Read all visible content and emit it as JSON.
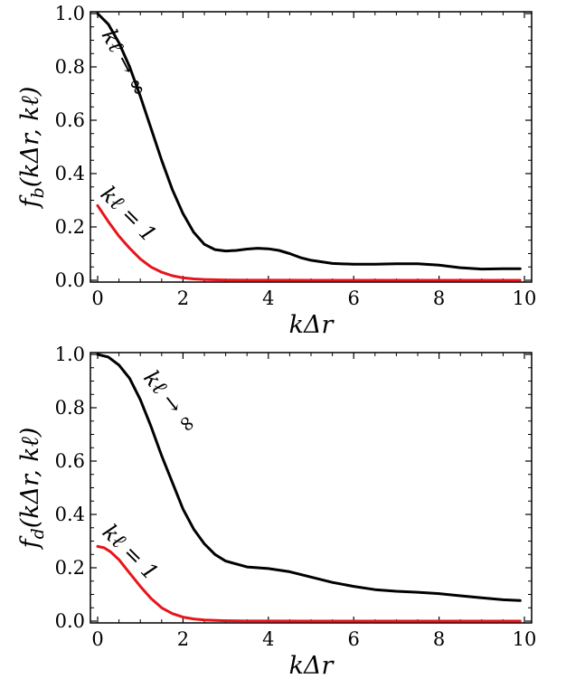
{
  "colors": {
    "black_series": "#000000",
    "red_series": "#e8141b",
    "frame": "#000000"
  },
  "chart_data": [
    {
      "type": "line",
      "xlabel": "kΔr",
      "ylabel": "f_b(kΔr, kℓ)",
      "xlim": [
        0,
        10
      ],
      "ylim": [
        0,
        1
      ],
      "x_ticks": [
        "0",
        "2",
        "4",
        "6",
        "8",
        "10"
      ],
      "y_ticks": [
        "0.0",
        "0.2",
        "0.4",
        "0.6",
        "0.8",
        "1.0"
      ],
      "grid": false,
      "legend": "none",
      "annotations": [
        "kℓ → ∞",
        "kℓ = 1"
      ],
      "series": [
        {
          "color": "#000000",
          "x": [
            0,
            0.25,
            0.5,
            0.75,
            1.0,
            1.25,
            1.5,
            1.75,
            2.0,
            2.25,
            2.5,
            2.75,
            3.0,
            3.25,
            3.5,
            3.75,
            4.0,
            4.25,
            4.5,
            4.75,
            5.0,
            5.5,
            6.0,
            6.5,
            7.0,
            7.5,
            8.0,
            8.5,
            9.0,
            9.5,
            9.9
          ],
          "y": [
            1.0,
            0.96,
            0.89,
            0.8,
            0.69,
            0.57,
            0.45,
            0.34,
            0.25,
            0.18,
            0.135,
            0.115,
            0.11,
            0.112,
            0.117,
            0.12,
            0.118,
            0.112,
            0.1,
            0.085,
            0.075,
            0.063,
            0.06,
            0.06,
            0.062,
            0.062,
            0.057,
            0.047,
            0.042,
            0.043,
            0.043
          ]
        },
        {
          "color": "#e8141b",
          "x": [
            0,
            0.25,
            0.5,
            0.75,
            1.0,
            1.25,
            1.5,
            1.75,
            2.0,
            2.25,
            2.5,
            3.0,
            3.5,
            4.0,
            5.0,
            6.0,
            7.0,
            8.0,
            9.0,
            9.9
          ],
          "y": [
            0.28,
            0.22,
            0.165,
            0.12,
            0.08,
            0.05,
            0.03,
            0.017,
            0.009,
            0.005,
            0.003,
            0.001,
            0.0005,
            0.0002,
            0.0001,
            0.0001,
            0.0001,
            0.0001,
            0.0001,
            0.0001
          ]
        }
      ]
    },
    {
      "type": "line",
      "xlabel": "kΔr",
      "ylabel": "f_d(kΔr, kℓ)",
      "xlim": [
        0,
        10
      ],
      "ylim": [
        0,
        1
      ],
      "x_ticks": [
        "0",
        "2",
        "4",
        "6",
        "8",
        "10"
      ],
      "y_ticks": [
        "0.0",
        "0.2",
        "0.4",
        "0.6",
        "0.8",
        "1.0"
      ],
      "grid": false,
      "legend": "none",
      "annotations": [
        "kℓ → ∞",
        "kℓ = 1"
      ],
      "series": [
        {
          "color": "#000000",
          "x": [
            0,
            0.25,
            0.5,
            0.75,
            1.0,
            1.25,
            1.5,
            1.75,
            2.0,
            2.25,
            2.5,
            2.75,
            3.0,
            3.5,
            4.0,
            4.5,
            5.0,
            5.5,
            6.0,
            6.5,
            7.0,
            7.5,
            8.0,
            8.5,
            9.0,
            9.5,
            9.9
          ],
          "y": [
            1.0,
            0.99,
            0.96,
            0.91,
            0.83,
            0.73,
            0.62,
            0.52,
            0.42,
            0.345,
            0.29,
            0.25,
            0.225,
            0.203,
            0.197,
            0.185,
            0.165,
            0.145,
            0.13,
            0.118,
            0.112,
            0.108,
            0.103,
            0.095,
            0.087,
            0.08,
            0.077
          ]
        },
        {
          "color": "#e8141b",
          "x": [
            0,
            0.15,
            0.3,
            0.5,
            0.75,
            1.0,
            1.25,
            1.5,
            1.75,
            2.0,
            2.25,
            2.5,
            3.0,
            3.5,
            4.0,
            5.0,
            6.0,
            7.0,
            8.0,
            9.0,
            9.9
          ],
          "y": [
            0.28,
            0.275,
            0.26,
            0.23,
            0.18,
            0.13,
            0.085,
            0.05,
            0.028,
            0.015,
            0.008,
            0.004,
            0.0015,
            0.0005,
            0.0002,
            0.0001,
            0.0001,
            0.0001,
            0.0001,
            0.0001,
            0.0001
          ]
        }
      ]
    }
  ]
}
